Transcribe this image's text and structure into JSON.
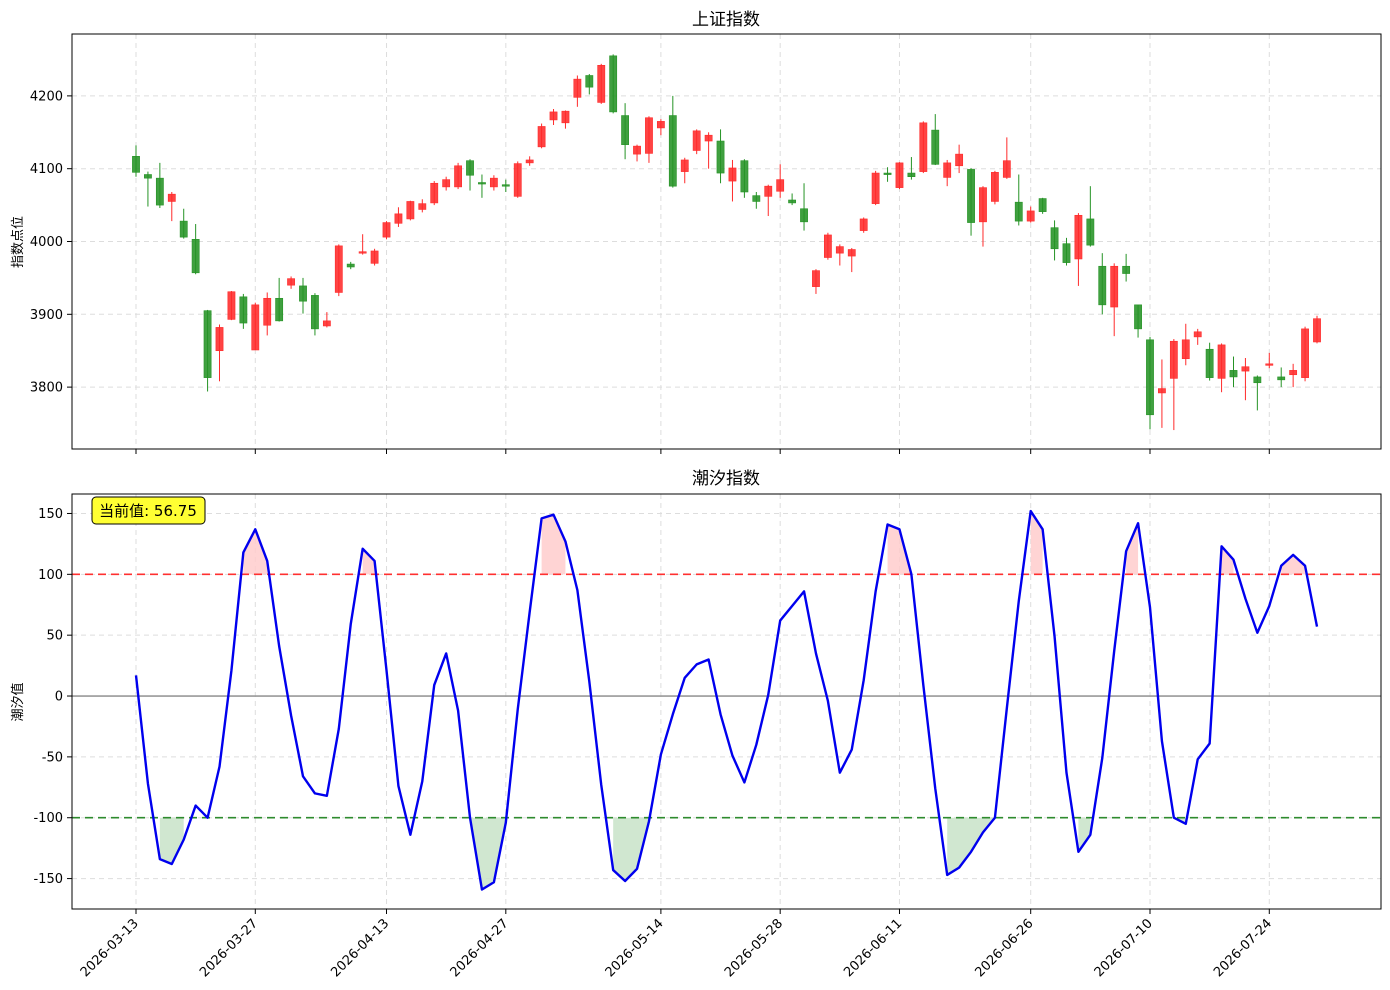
{
  "chart_data": [
    {
      "type": "candlestick",
      "title": "上证指数",
      "ylabel": "指数点位",
      "ylim": [
        3715,
        4285
      ],
      "yticks": [
        3800,
        3900,
        4000,
        4100,
        4200
      ],
      "grid": true,
      "colors": {
        "up": "#ff2a2a",
        "down": "#259325"
      },
      "candles": [
        [
          4117,
          4095,
          4132,
          4089
        ],
        [
          4092,
          4087,
          4096,
          4048
        ],
        [
          4087,
          4050,
          4108,
          4046
        ],
        [
          4055,
          4065,
          4068,
          4028
        ],
        [
          4028,
          4006,
          4045,
          4004
        ],
        [
          4003,
          3957,
          4024,
          3955
        ],
        [
          3905,
          3813,
          3906,
          3794
        ],
        [
          3850,
          3882,
          3886,
          3808
        ],
        [
          3893,
          3931,
          3932,
          3892
        ],
        [
          3924,
          3888,
          3928,
          3880
        ],
        [
          3851,
          3913,
          3916,
          3851
        ],
        [
          3885,
          3922,
          3930,
          3871
        ],
        [
          3922,
          3891,
          3950,
          3890
        ],
        [
          3940,
          3949,
          3952,
          3935
        ],
        [
          3939,
          3918,
          3950,
          3901
        ],
        [
          3926,
          3880,
          3929,
          3871
        ],
        [
          3884,
          3891,
          3903,
          3882
        ],
        [
          3930,
          3994,
          3996,
          3925
        ],
        [
          3969,
          3965,
          3972,
          3962
        ],
        [
          3985,
          3986,
          4010,
          3982
        ],
        [
          3970,
          3987,
          3990,
          3967
        ],
        [
          4006,
          4026,
          4028,
          4003
        ],
        [
          4025,
          4038,
          4047,
          4020
        ],
        [
          4031,
          4055,
          4056,
          4029
        ],
        [
          4044,
          4052,
          4058,
          4040
        ],
        [
          4053,
          4080,
          4083,
          4050
        ],
        [
          4075,
          4085,
          4089,
          4070
        ],
        [
          4075,
          4104,
          4108,
          4072
        ],
        [
          4111,
          4091,
          4113,
          4070
        ],
        [
          4081,
          4079,
          4092,
          4060
        ],
        [
          4075,
          4087,
          4091,
          4070
        ],
        [
          4078,
          4077,
          4085,
          4068
        ],
        [
          4062,
          4107,
          4110,
          4060
        ],
        [
          4108,
          4112,
          4117,
          4104
        ],
        [
          4130,
          4158,
          4162,
          4128
        ],
        [
          4167,
          4178,
          4182,
          4160
        ],
        [
          4163,
          4179,
          4180,
          4155
        ],
        [
          4198,
          4223,
          4228,
          4185
        ],
        [
          4228,
          4212,
          4230,
          4202
        ],
        [
          4191,
          4242,
          4244,
          4189
        ],
        [
          4255,
          4178,
          4257,
          4176
        ],
        [
          4173,
          4133,
          4190,
          4113
        ],
        [
          4120,
          4131,
          4133,
          4110
        ],
        [
          4121,
          4170,
          4172,
          4108
        ],
        [
          4156,
          4165,
          4168,
          4146
        ],
        [
          4173,
          4076,
          4200,
          4074
        ],
        [
          4096,
          4112,
          4115,
          4080
        ],
        [
          4125,
          4152,
          4154,
          4120
        ],
        [
          4138,
          4146,
          4150,
          4100
        ],
        [
          4138,
          4094,
          4154,
          4080
        ],
        [
          4083,
          4101,
          4112,
          4055
        ],
        [
          4111,
          4068,
          4113,
          4060
        ],
        [
          4063,
          4055,
          4068,
          4045
        ],
        [
          4062,
          4076,
          4078,
          4035
        ],
        [
          4069,
          4085,
          4106,
          4060
        ],
        [
          4057,
          4053,
          4066,
          4050
        ],
        [
          4045,
          4027,
          4080,
          4015
        ],
        [
          3938,
          3960,
          3962,
          3928
        ],
        [
          3978,
          4009,
          4012,
          3975
        ],
        [
          3984,
          3993,
          3996,
          3967
        ],
        [
          3980,
          3989,
          3991,
          3958
        ],
        [
          4015,
          4031,
          4033,
          4012
        ],
        [
          4052,
          4094,
          4097,
          4050
        ],
        [
          4094,
          4092,
          4102,
          4082
        ],
        [
          4074,
          4108,
          4109,
          4072
        ],
        [
          4094,
          4089,
          4116,
          4085
        ],
        [
          4096,
          4163,
          4165,
          4094
        ],
        [
          4153,
          4106,
          4175,
          4105
        ],
        [
          4088,
          4108,
          4112,
          4076
        ],
        [
          4104,
          4120,
          4133,
          4094
        ],
        [
          4099,
          4026,
          4101,
          4008
        ],
        [
          4027,
          4074,
          4076,
          3993
        ],
        [
          4055,
          4095,
          4097,
          4051
        ],
        [
          4088,
          4111,
          4143,
          4086
        ],
        [
          4054,
          4028,
          4092,
          4022
        ],
        [
          4028,
          4042,
          4048,
          4026
        ],
        [
          4059,
          4041,
          4060,
          4038
        ],
        [
          4019,
          3990,
          4029,
          3974
        ],
        [
          3997,
          3971,
          4005,
          3967
        ],
        [
          3976,
          4036,
          4039,
          3939
        ],
        [
          4031,
          3995,
          4076,
          3993
        ],
        [
          3966,
          3913,
          3984,
          3900
        ],
        [
          3910,
          3966,
          3970,
          3870
        ],
        [
          3966,
          3956,
          3983,
          3945
        ],
        [
          3913,
          3880,
          3913,
          3868
        ],
        [
          3865,
          3762,
          3869,
          3742
        ],
        [
          3792,
          3798,
          3838,
          3744
        ],
        [
          3812,
          3863,
          3866,
          3741
        ],
        [
          3839,
          3865,
          3887,
          3830
        ],
        [
          3869,
          3876,
          3880,
          3858
        ],
        [
          3852,
          3813,
          3861,
          3809
        ],
        [
          3812,
          3858,
          3860,
          3793
        ],
        [
          3823,
          3814,
          3842,
          3800
        ],
        [
          3822,
          3828,
          3840,
          3782
        ],
        [
          3814,
          3806,
          3816,
          3768
        ],
        [
          3831,
          3832,
          3847,
          3826
        ],
        [
          3814,
          3810,
          3827,
          3800
        ],
        [
          3817,
          3823,
          3832,
          3800
        ],
        [
          3813,
          3880,
          3883,
          3808
        ],
        [
          3862,
          3894,
          3898,
          3860
        ]
      ]
    },
    {
      "type": "line",
      "title": "潮汐指数",
      "ylabel": "潮汐值",
      "ylim": [
        -175,
        166
      ],
      "yticks": [
        -150,
        -100,
        -50,
        0,
        50,
        100,
        150
      ],
      "grid": true,
      "x": [
        "2026-03-13",
        "2026-03-16",
        "2026-03-17",
        "2026-03-18",
        "2026-03-19",
        "2026-03-20",
        "2026-03-23",
        "2026-03-24",
        "2026-03-25",
        "2026-03-26",
        "2026-03-27",
        "2026-03-30",
        "2026-03-31",
        "2026-04-01",
        "2026-04-02",
        "2026-04-03",
        "2026-04-06",
        "2026-04-07",
        "2026-04-08",
        "2026-04-09",
        "2026-04-10",
        "2026-04-13",
        "2026-04-14",
        "2026-04-15",
        "2026-04-16",
        "2026-04-17",
        "2026-04-20",
        "2026-04-21",
        "2026-04-22",
        "2026-04-23",
        "2026-04-24",
        "2026-04-27",
        "2026-04-28",
        "2026-04-29",
        "2026-04-30",
        "2026-05-01",
        "2026-05-04",
        "2026-05-05",
        "2026-05-06",
        "2026-05-07",
        "2026-05-08",
        "2026-05-11",
        "2026-05-12",
        "2026-05-13",
        "2026-05-14",
        "2026-05-15",
        "2026-05-18",
        "2026-05-19",
        "2026-05-20",
        "2026-05-21",
        "2026-05-22",
        "2026-05-25",
        "2026-05-26",
        "2026-05-27",
        "2026-05-28",
        "2026-05-29",
        "2026-06-01",
        "2026-06-02",
        "2026-06-03",
        "2026-06-04",
        "2026-06-05",
        "2026-06-08",
        "2026-06-09",
        "2026-06-10",
        "2026-06-11",
        "2026-06-12",
        "2026-06-15",
        "2026-06-16",
        "2026-06-17",
        "2026-06-18",
        "2026-06-19",
        "2026-06-22",
        "2026-06-23",
        "2026-06-24",
        "2026-06-25",
        "2026-06-26",
        "2026-06-29",
        "2026-06-30",
        "2026-07-01",
        "2026-07-02",
        "2026-07-03",
        "2026-07-06",
        "2026-07-07",
        "2026-07-08",
        "2026-07-09",
        "2026-07-10",
        "2026-07-13",
        "2026-07-14",
        "2026-07-15",
        "2026-07-16",
        "2026-07-17",
        "2026-07-20",
        "2026-07-21",
        "2026-07-22",
        "2026-07-23",
        "2026-07-24",
        "2026-07-27",
        "2026-07-28",
        "2026-07-29",
        "2026-07-30"
      ],
      "xticks": [
        "2026-03-13",
        "2026-03-27",
        "2026-04-13",
        "2026-04-27",
        "2026-05-14",
        "2026-05-28",
        "2026-06-11",
        "2026-06-26",
        "2026-07-10",
        "2026-07-24"
      ],
      "values": [
        17,
        -72,
        -134,
        -138,
        -118,
        -90,
        -100,
        -58,
        21,
        118,
        137,
        111,
        41,
        -16,
        -66,
        -80,
        -82,
        -27,
        59,
        121,
        111,
        21,
        -74,
        -114,
        -70,
        9,
        35,
        -12,
        -100,
        -159,
        -153,
        -104,
        -11,
        69,
        146,
        149,
        127,
        87,
        12,
        -73,
        -143,
        -152,
        -142,
        -103,
        -48,
        -15,
        15,
        26,
        30,
        -15,
        -49,
        -71,
        -40,
        1,
        62,
        74,
        86,
        35,
        -4,
        -63,
        -44,
        13,
        86,
        141,
        137,
        100,
        9,
        -76,
        -147,
        -141,
        -128,
        -112,
        -100,
        -10,
        78,
        152,
        137,
        49,
        -63,
        -128,
        -114,
        -51,
        37,
        119,
        142,
        73,
        -37,
        -100,
        -105,
        -52,
        -39,
        123,
        112,
        80,
        52,
        74,
        107,
        116,
        107,
        57
      ],
      "series_color": "#0000ee",
      "hlines": [
        {
          "value": 100,
          "color": "#ff3030",
          "style": "dashed"
        },
        {
          "value": 0,
          "color": "#999999",
          "style": "solid"
        },
        {
          "value": -100,
          "color": "#2e8b2e",
          "style": "dashed"
        }
      ],
      "fills": {
        "above": "#ffcccc",
        "below": "#c8e3c8"
      },
      "annotation": "当前值: 56.75",
      "annotation_bg": "#ffff33"
    }
  ]
}
